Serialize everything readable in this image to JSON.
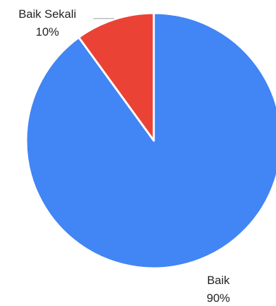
{
  "chart_data": {
    "type": "pie",
    "title": "",
    "slices": [
      {
        "label": "Baik Sekali",
        "percent_label": "10%",
        "value": 10,
        "color": "#EA4335"
      },
      {
        "label": "Baik",
        "percent_label": "90%",
        "value": 90,
        "color": "#4285F4"
      }
    ],
    "legend": "none",
    "start_angle": "top",
    "direction": "counter-clockwise"
  }
}
